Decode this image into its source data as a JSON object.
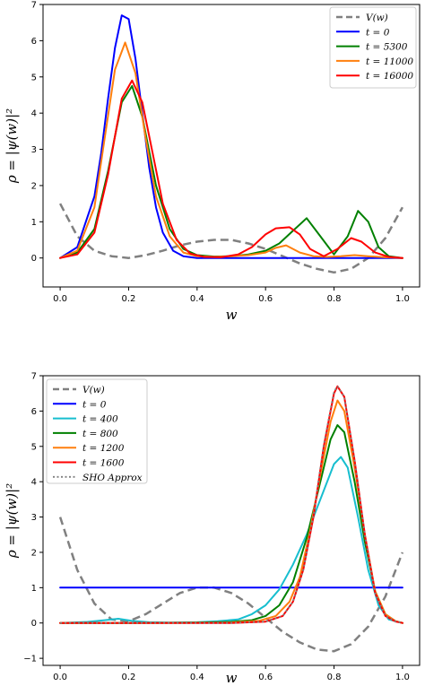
{
  "chart_data": [
    {
      "type": "line",
      "title": "",
      "xlabel": "w",
      "ylabel": "ρ = |ψ(w)|²",
      "xlim": [
        -0.05,
        1.05
      ],
      "ylim": [
        -0.8,
        7.0
      ],
      "xticks": [
        "0.0",
        "0.2",
        "0.4",
        "0.6",
        "0.8",
        "1.0"
      ],
      "yticks": [
        "0",
        "1",
        "2",
        "3",
        "4",
        "5",
        "6",
        "7"
      ],
      "legend_position": "top-right",
      "grid": false,
      "series": [
        {
          "name": "V(w)",
          "color": "#808080",
          "style": "dashed",
          "x": [
            0.0,
            0.05,
            0.1,
            0.15,
            0.2,
            0.25,
            0.3,
            0.35,
            0.4,
            0.45,
            0.5,
            0.55,
            0.6,
            0.65,
            0.7,
            0.75,
            0.8,
            0.85,
            0.9,
            0.95,
            1.0
          ],
          "y": [
            1.5,
            0.6,
            0.2,
            0.05,
            0.0,
            0.08,
            0.2,
            0.35,
            0.45,
            0.5,
            0.5,
            0.4,
            0.25,
            0.05,
            -0.15,
            -0.3,
            -0.4,
            -0.3,
            0.0,
            0.55,
            1.4
          ]
        },
        {
          "name": "t = 0",
          "color": "#0000ff",
          "style": "solid",
          "x": [
            0.0,
            0.05,
            0.1,
            0.12,
            0.14,
            0.16,
            0.18,
            0.2,
            0.22,
            0.24,
            0.26,
            0.28,
            0.3,
            0.33,
            0.36,
            0.4,
            0.5,
            0.6,
            0.7,
            0.8,
            0.9,
            0.95,
            1.0
          ],
          "y": [
            0.0,
            0.3,
            1.7,
            2.9,
            4.4,
            5.8,
            6.7,
            6.6,
            5.5,
            4.0,
            2.5,
            1.4,
            0.7,
            0.2,
            0.05,
            0.0,
            0.0,
            0.0,
            0.0,
            0.0,
            0.0,
            0.0,
            0.0
          ]
        },
        {
          "name": "t = 5300",
          "color": "#008000",
          "style": "solid",
          "x": [
            0.0,
            0.05,
            0.1,
            0.14,
            0.18,
            0.21,
            0.24,
            0.28,
            0.32,
            0.36,
            0.4,
            0.45,
            0.5,
            0.55,
            0.6,
            0.64,
            0.68,
            0.72,
            0.76,
            0.8,
            0.84,
            0.87,
            0.9,
            0.93,
            0.96,
            1.0
          ],
          "y": [
            0.0,
            0.15,
            0.8,
            2.4,
            4.3,
            4.75,
            3.9,
            2.0,
            0.8,
            0.25,
            0.08,
            0.04,
            0.05,
            0.1,
            0.2,
            0.4,
            0.75,
            1.1,
            0.6,
            0.1,
            0.6,
            1.3,
            1.0,
            0.3,
            0.05,
            0.0
          ]
        },
        {
          "name": "t = 11000",
          "color": "#ff7f0e",
          "style": "solid",
          "x": [
            0.0,
            0.05,
            0.1,
            0.13,
            0.16,
            0.19,
            0.22,
            0.25,
            0.28,
            0.32,
            0.36,
            0.4,
            0.45,
            0.5,
            0.55,
            0.6,
            0.63,
            0.66,
            0.7,
            0.74,
            0.78,
            0.82,
            0.86,
            0.9,
            0.95,
            1.0
          ],
          "y": [
            0.0,
            0.2,
            1.4,
            3.3,
            5.2,
            5.95,
            5.1,
            3.3,
            1.7,
            0.6,
            0.15,
            0.05,
            0.03,
            0.05,
            0.08,
            0.15,
            0.28,
            0.35,
            0.15,
            0.05,
            0.03,
            0.05,
            0.08,
            0.05,
            0.02,
            0.0
          ]
        },
        {
          "name": "t = 16000",
          "color": "#ff0000",
          "style": "solid",
          "x": [
            0.0,
            0.05,
            0.1,
            0.14,
            0.18,
            0.21,
            0.24,
            0.27,
            0.3,
            0.34,
            0.38,
            0.42,
            0.47,
            0.52,
            0.56,
            0.6,
            0.63,
            0.67,
            0.7,
            0.73,
            0.77,
            0.81,
            0.85,
            0.88,
            0.92,
            0.96,
            1.0
          ],
          "y": [
            0.0,
            0.1,
            0.7,
            2.3,
            4.4,
            4.9,
            4.3,
            2.9,
            1.5,
            0.5,
            0.12,
            0.03,
            0.02,
            0.1,
            0.3,
            0.65,
            0.82,
            0.85,
            0.65,
            0.25,
            0.05,
            0.25,
            0.55,
            0.45,
            0.15,
            0.03,
            0.0
          ]
        }
      ]
    },
    {
      "type": "line",
      "title": "",
      "xlabel": "w",
      "ylabel": "ρ = |ψ(w)|²",
      "xlim": [
        -0.05,
        1.05
      ],
      "ylim": [
        -1.2,
        7.0
      ],
      "xticks": [
        "0.0",
        "0.2",
        "0.4",
        "0.6",
        "0.8",
        "1.0"
      ],
      "yticks": [
        "−1",
        "0",
        "1",
        "2",
        "3",
        "4",
        "5",
        "6",
        "7"
      ],
      "legend_position": "top-left",
      "grid": false,
      "series": [
        {
          "name": "V(w)",
          "color": "#808080",
          "style": "dashed",
          "x": [
            0.0,
            0.05,
            0.1,
            0.15,
            0.2,
            0.25,
            0.3,
            0.35,
            0.4,
            0.45,
            0.5,
            0.55,
            0.6,
            0.65,
            0.7,
            0.75,
            0.8,
            0.85,
            0.9,
            0.95,
            1.0
          ],
          "y": [
            3.0,
            1.5,
            0.55,
            0.1,
            0.05,
            0.25,
            0.55,
            0.85,
            1.0,
            1.0,
            0.85,
            0.55,
            0.15,
            -0.25,
            -0.55,
            -0.75,
            -0.8,
            -0.6,
            -0.1,
            0.75,
            2.0
          ]
        },
        {
          "name": "t = 0",
          "color": "#0000ff",
          "style": "solid",
          "x": [
            0.0,
            1.0
          ],
          "y": [
            1.0,
            1.0
          ]
        },
        {
          "name": "t = 400",
          "color": "#17becf",
          "style": "solid",
          "x": [
            0.0,
            0.08,
            0.13,
            0.17,
            0.21,
            0.26,
            0.32,
            0.4,
            0.46,
            0.52,
            0.56,
            0.6,
            0.64,
            0.68,
            0.72,
            0.76,
            0.8,
            0.82,
            0.84,
            0.87,
            0.9,
            0.93,
            0.96,
            1.0
          ],
          "y": [
            0.0,
            0.03,
            0.08,
            0.12,
            0.06,
            0.02,
            0.01,
            0.02,
            0.05,
            0.1,
            0.25,
            0.5,
            0.95,
            1.65,
            2.5,
            3.5,
            4.5,
            4.7,
            4.4,
            3.0,
            1.5,
            0.5,
            0.1,
            0.0
          ]
        },
        {
          "name": "t = 800",
          "color": "#008000",
          "style": "solid",
          "x": [
            0.0,
            0.2,
            0.4,
            0.5,
            0.56,
            0.6,
            0.64,
            0.68,
            0.72,
            0.76,
            0.79,
            0.81,
            0.83,
            0.86,
            0.89,
            0.92,
            0.95,
            0.98,
            1.0
          ],
          "y": [
            0.0,
            0.0,
            0.01,
            0.03,
            0.08,
            0.2,
            0.5,
            1.15,
            2.4,
            4.0,
            5.2,
            5.6,
            5.4,
            4.0,
            2.3,
            0.9,
            0.25,
            0.05,
            0.0
          ]
        },
        {
          "name": "t = 1200",
          "color": "#ff7f0e",
          "style": "solid",
          "x": [
            0.0,
            0.3,
            0.5,
            0.58,
            0.63,
            0.67,
            0.7,
            0.73,
            0.76,
            0.79,
            0.81,
            0.83,
            0.86,
            0.89,
            0.92,
            0.95,
            0.98,
            1.0
          ],
          "y": [
            0.0,
            0.0,
            0.01,
            0.06,
            0.2,
            0.6,
            1.3,
            2.6,
            4.2,
            5.7,
            6.3,
            6.0,
            4.4,
            2.5,
            0.9,
            0.25,
            0.05,
            0.0
          ]
        },
        {
          "name": "t = 1600",
          "color": "#ff0000",
          "style": "solid",
          "x": [
            0.0,
            0.3,
            0.5,
            0.6,
            0.65,
            0.68,
            0.71,
            0.74,
            0.77,
            0.8,
            0.81,
            0.83,
            0.86,
            0.89,
            0.92,
            0.95,
            0.98,
            1.0
          ],
          "y": [
            0.0,
            0.0,
            0.0,
            0.04,
            0.2,
            0.6,
            1.5,
            3.0,
            5.0,
            6.5,
            6.7,
            6.4,
            4.6,
            2.5,
            0.85,
            0.2,
            0.04,
            0.0
          ]
        },
        {
          "name": "SHO Approx",
          "color": "#808080",
          "style": "dotted",
          "x": [
            0.0,
            0.3,
            0.5,
            0.6,
            0.65,
            0.68,
            0.71,
            0.74,
            0.77,
            0.8,
            0.81,
            0.83,
            0.86,
            0.89,
            0.92,
            0.95,
            0.98,
            1.0
          ],
          "y": [
            0.0,
            0.0,
            0.0,
            0.04,
            0.2,
            0.6,
            1.5,
            3.05,
            5.05,
            6.55,
            6.7,
            6.4,
            4.6,
            2.5,
            0.85,
            0.2,
            0.04,
            0.0
          ]
        }
      ]
    }
  ]
}
